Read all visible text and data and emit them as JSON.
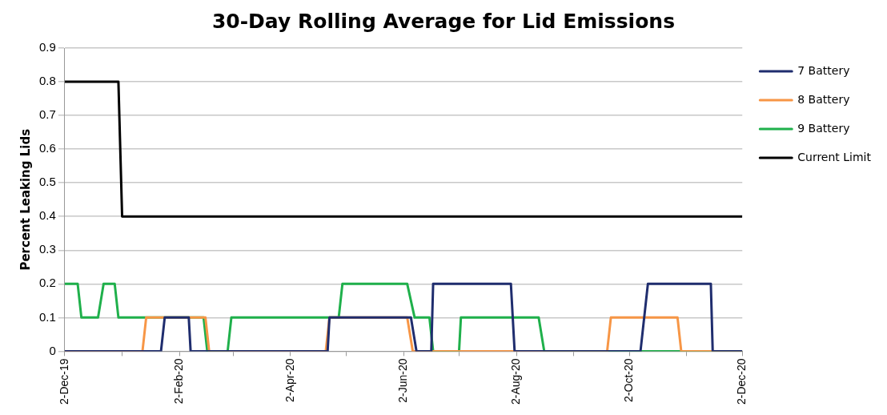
{
  "chart_data": {
    "type": "line",
    "title": "30-Day Rolling Average for Lid Emissions",
    "ylabel": "Percent Leaking Lids",
    "legend": "right",
    "grid": "y",
    "marker": "none",
    "line_style": "solid",
    "ylim": [
      0,
      0.9
    ],
    "yticks": [
      0,
      0.1,
      0.2,
      0.3,
      0.4,
      0.5,
      0.6,
      0.7,
      0.8,
      0.9
    ],
    "xlim": [
      "2019-12-02",
      "2020-12-02"
    ],
    "xticks": [
      {
        "value": "2019-12-02",
        "label": "2-Dec-19"
      },
      {
        "value": "2020-01-02",
        "label": null
      },
      {
        "value": "2020-02-02",
        "label": "2-Feb-20"
      },
      {
        "value": "2020-03-02",
        "label": null
      },
      {
        "value": "2020-04-02",
        "label": "2-Apr-20"
      },
      {
        "value": "2020-05-02",
        "label": null
      },
      {
        "value": "2020-06-02",
        "label": "2-Jun-20"
      },
      {
        "value": "2020-07-02",
        "label": null
      },
      {
        "value": "2020-08-02",
        "label": "2-Aug-20"
      },
      {
        "value": "2020-09-02",
        "label": null
      },
      {
        "value": "2020-10-02",
        "label": "2-Oct-20"
      },
      {
        "value": "2020-11-02",
        "label": null
      },
      {
        "value": "2020-12-02",
        "label": "2-Dec-20"
      }
    ],
    "series": [
      {
        "name": "7 Battery",
        "color": "#1f2d6e",
        "x": [
          "2019-12-02",
          "2020-01-23",
          "2020-01-25",
          "2020-02-07",
          "2020-02-08",
          "2020-04-22",
          "2020-04-23",
          "2020-06-06",
          "2020-06-09",
          "2020-06-17",
          "2020-06-18",
          "2020-07-30",
          "2020-08-01",
          "2020-10-08",
          "2020-10-12",
          "2020-11-15",
          "2020-11-16",
          "2020-12-02"
        ],
        "values": [
          0,
          0,
          0.1,
          0.1,
          0,
          0,
          0.1,
          0.1,
          0,
          0,
          0.2,
          0.2,
          0,
          0,
          0.2,
          0.2,
          0,
          0
        ]
      },
      {
        "name": "8 Battery",
        "color": "#f79646",
        "x": [
          "2019-12-02",
          "2020-01-13",
          "2020-01-15",
          "2020-02-16",
          "2020-02-18",
          "2020-04-21",
          "2020-04-23",
          "2020-06-04",
          "2020-06-07",
          "2020-09-20",
          "2020-09-22",
          "2020-10-28",
          "2020-10-30",
          "2020-12-02"
        ],
        "values": [
          0,
          0,
          0.1,
          0.1,
          0,
          0,
          0.1,
          0.1,
          0,
          0,
          0.1,
          0.1,
          0,
          0
        ]
      },
      {
        "name": "9 Battery",
        "color": "#1fb04b",
        "x": [
          "2019-12-02",
          "2019-12-09",
          "2019-12-11",
          "2019-12-20",
          "2019-12-23",
          "2019-12-29",
          "2019-12-31",
          "2020-02-15",
          "2020-02-17",
          "2020-02-28",
          "2020-03-01",
          "2020-04-28",
          "2020-04-30",
          "2020-06-04",
          "2020-06-08",
          "2020-06-16",
          "2020-06-18",
          "2020-07-02",
          "2020-07-03",
          "2020-08-14",
          "2020-08-17",
          "2020-12-02"
        ],
        "values": [
          0.2,
          0.2,
          0.1,
          0.1,
          0.2,
          0.2,
          0.1,
          0.1,
          0,
          0,
          0.1,
          0.1,
          0.2,
          0.2,
          0.1,
          0.1,
          0,
          0,
          0.1,
          0.1,
          0,
          0
        ]
      },
      {
        "name": "Current Limit",
        "color": "#000000",
        "x": [
          "2019-12-02",
          "2019-12-31",
          "2020-01-02",
          "2020-12-02"
        ],
        "values": [
          0.8,
          0.8,
          0.4,
          0.4
        ]
      }
    ]
  }
}
